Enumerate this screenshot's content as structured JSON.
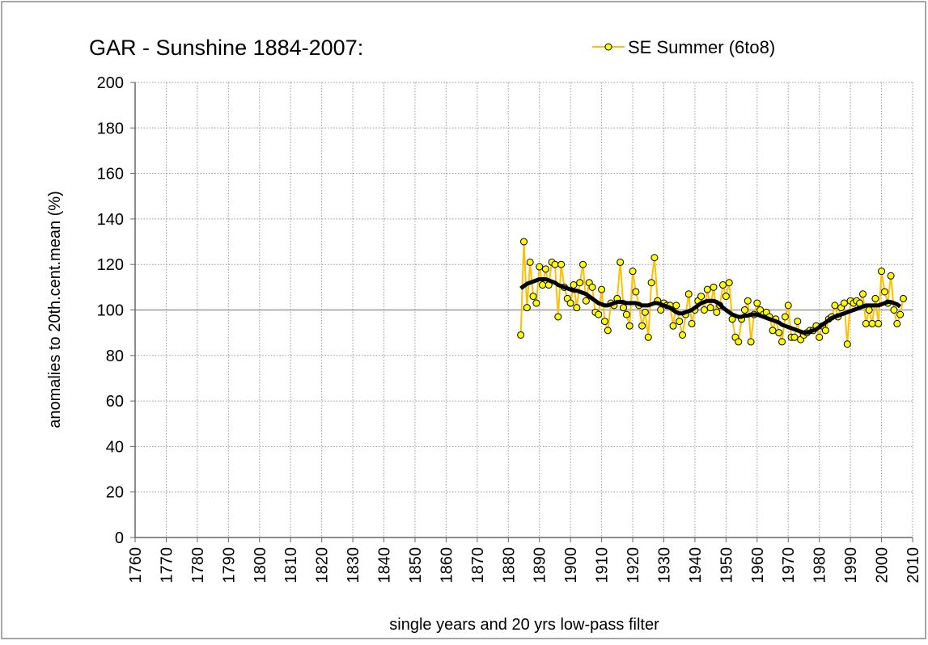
{
  "chart_data": {
    "type": "line",
    "title": "GAR - Sunshine 1884-2007:",
    "ylabel": "anomalies to 20th.cent.mean (%)",
    "xlabel": "single years and 20 yrs low-pass filter",
    "xlim": [
      1760,
      2010
    ],
    "xticks": [
      1760,
      1770,
      1780,
      1790,
      1800,
      1810,
      1820,
      1830,
      1840,
      1850,
      1860,
      1870,
      1880,
      1890,
      1900,
      1910,
      1920,
      1930,
      1940,
      1950,
      1960,
      1970,
      1980,
      1990,
      2000,
      2010
    ],
    "ylim": [
      0,
      200
    ],
    "yticks": [
      0,
      20,
      40,
      60,
      80,
      100,
      120,
      140,
      160,
      180,
      200
    ],
    "grid": true,
    "hline": 100,
    "legend": "top-right",
    "x": [
      1884,
      1885,
      1886,
      1887,
      1888,
      1889,
      1890,
      1891,
      1892,
      1893,
      1894,
      1895,
      1896,
      1897,
      1898,
      1899,
      1900,
      1901,
      1902,
      1903,
      1904,
      1905,
      1906,
      1907,
      1908,
      1909,
      1910,
      1911,
      1912,
      1913,
      1914,
      1915,
      1916,
      1917,
      1918,
      1919,
      1920,
      1921,
      1922,
      1923,
      1924,
      1925,
      1926,
      1927,
      1928,
      1929,
      1930,
      1931,
      1932,
      1933,
      1934,
      1935,
      1936,
      1937,
      1938,
      1939,
      1940,
      1941,
      1942,
      1943,
      1944,
      1945,
      1946,
      1947,
      1948,
      1949,
      1950,
      1951,
      1952,
      1953,
      1954,
      1955,
      1956,
      1957,
      1958,
      1959,
      1960,
      1961,
      1962,
      1963,
      1964,
      1965,
      1966,
      1967,
      1968,
      1969,
      1970,
      1971,
      1972,
      1973,
      1974,
      1975,
      1976,
      1977,
      1978,
      1979,
      1980,
      1981,
      1982,
      1983,
      1984,
      1985,
      1986,
      1987,
      1988,
      1989,
      1990,
      1991,
      1992,
      1993,
      1994,
      1995,
      1996,
      1997,
      1998,
      1999,
      2000,
      2001,
      2002,
      2003,
      2004,
      2005,
      2006,
      2007
    ],
    "series": [
      {
        "name": "SE Summer (6to8)",
        "color": "#ffc000",
        "marker_color": "#ffff00",
        "values": [
          89,
          130,
          101,
          121,
          106,
          103,
          119,
          111,
          118,
          111,
          121,
          120,
          97,
          120,
          110,
          105,
          103,
          111,
          101,
          112,
          120,
          104,
          112,
          110,
          99,
          98,
          109,
          95,
          91,
          103,
          102,
          105,
          121,
          101,
          98,
          93,
          117,
          108,
          102,
          93,
          99,
          88,
          112,
          123,
          104,
          100,
          103,
          102,
          102,
          93,
          102,
          95,
          89,
          98,
          107,
          94,
          100,
          104,
          106,
          100,
          109,
          101,
          110,
          99,
          102,
          111,
          106,
          112,
          96,
          88,
          86,
          96,
          100,
          104,
          86,
          98,
          103,
          100,
          98,
          99,
          97,
          91,
          96,
          90,
          86,
          97,
          102,
          88,
          88,
          95,
          87,
          89,
          90,
          91,
          91,
          93,
          88,
          93,
          91,
          96,
          97,
          102,
          97,
          101,
          103,
          85,
          104,
          103,
          104,
          103,
          107,
          94,
          100,
          94,
          105,
          94,
          117,
          108,
          103,
          115,
          100,
          94,
          98,
          105
        ]
      },
      {
        "color": "#000000",
        "values": [
          109.5,
          110.5,
          111.5,
          112,
          112.5,
          113,
          113.5,
          113.5,
          113.5,
          113,
          112.5,
          112,
          111,
          110.5,
          110,
          109.5,
          109,
          108.5,
          108.5,
          108,
          107.5,
          107,
          106,
          105,
          104,
          103,
          102.5,
          102,
          102,
          102.5,
          103,
          103.5,
          103.5,
          103.5,
          103,
          103,
          103,
          103,
          102.5,
          102,
          102,
          102,
          102.5,
          103,
          103,
          102.5,
          102,
          101.5,
          101,
          100,
          99,
          98.5,
          98.5,
          99,
          99.5,
          100,
          101,
          102,
          103,
          103.5,
          104,
          104,
          104,
          103.5,
          102.5,
          101,
          100,
          99,
          98,
          97.5,
          97,
          97,
          97.5,
          97.5,
          98,
          98,
          98,
          97.5,
          97,
          96.5,
          96,
          95.5,
          95,
          94.5,
          93.5,
          93,
          92.5,
          92,
          91.5,
          91,
          90.5,
          90,
          90,
          90.5,
          91,
          91.5,
          92.5,
          93.5,
          94.5,
          95.5,
          96.5,
          97,
          97.5,
          98,
          98.5,
          99,
          99.5,
          100,
          100.5,
          101,
          101.5,
          102,
          102,
          102,
          102,
          102,
          102.5,
          103,
          103.5,
          103.5,
          103,
          102.5,
          101.5,
          null
        ]
      }
    ]
  }
}
